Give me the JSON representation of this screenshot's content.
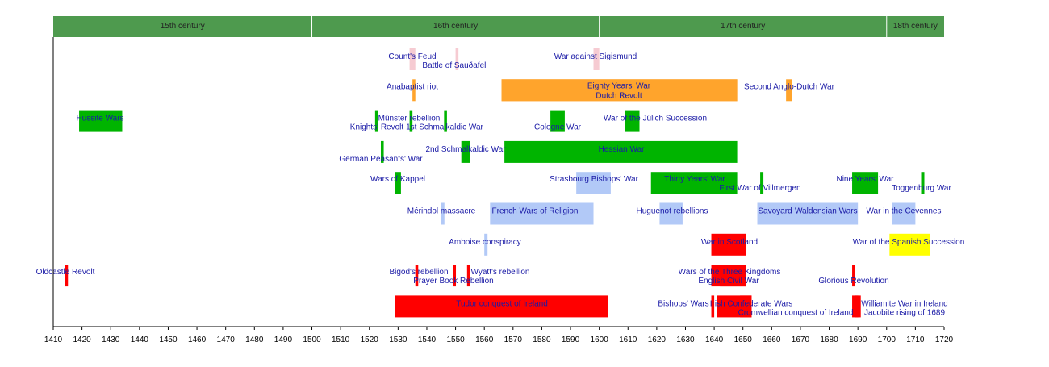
{
  "chart_data": {
    "type": "timeline",
    "xlim": [
      1410,
      1720
    ],
    "x_ticks": [
      1410,
      1420,
      1430,
      1440,
      1450,
      1460,
      1470,
      1480,
      1490,
      1500,
      1510,
      1520,
      1530,
      1540,
      1550,
      1560,
      1570,
      1580,
      1590,
      1600,
      1610,
      1620,
      1630,
      1640,
      1650,
      1660,
      1670,
      1680,
      1690,
      1700,
      1710,
      1720
    ],
    "grid": false,
    "centuries": [
      {
        "label": "15th century",
        "start": 1410,
        "end": 1500
      },
      {
        "label": "16th century",
        "start": 1500,
        "end": 1600
      },
      {
        "label": "17th century",
        "start": 1600,
        "end": 1700
      },
      {
        "label": "18th century",
        "start": 1700,
        "end": 1720
      }
    ],
    "colors": {
      "header": "#4e9a4e",
      "pink": "#f6cbd2",
      "orange": "#ffa42c",
      "green": "#00b400",
      "lightblue": "#b2c9f7",
      "red": "#ff0000",
      "yellow": "#ffff00",
      "label": "#1a1aa6"
    },
    "events": [
      {
        "label": "Count's Feud",
        "row": 1,
        "start": 1534,
        "end": 1536,
        "color": "pink"
      },
      {
        "label": "Battle of Sauðafell",
        "row": 1,
        "start": 1550,
        "end": 1551,
        "color": "pink"
      },
      {
        "label": "War against Sigismund",
        "row": 1,
        "start": 1598,
        "end": 1600,
        "color": "pink"
      },
      {
        "label": "Anabaptist riot",
        "row": 2,
        "start": 1535,
        "end": 1536,
        "color": "orange"
      },
      {
        "label": "Eighty Years' War",
        "row": 2,
        "start": 1566,
        "end": 1648,
        "color": "orange"
      },
      {
        "label": "Dutch Revolt",
        "row": 2,
        "start": 1566,
        "end": 1648,
        "color": "orange"
      },
      {
        "label": "Second Anglo-Dutch War",
        "row": 2,
        "start": 1665,
        "end": 1667,
        "color": "orange"
      },
      {
        "label": "Hussite Wars",
        "row": 3,
        "start": 1419,
        "end": 1434,
        "color": "green"
      },
      {
        "label": "Knights' Revolt",
        "row": 3,
        "start": 1522,
        "end": 1523,
        "color": "green"
      },
      {
        "label": "Münster rebellion",
        "row": 3,
        "start": 1534,
        "end": 1535,
        "color": "green"
      },
      {
        "label": "1st Schmalkaldic War",
        "row": 3,
        "start": 1546,
        "end": 1547,
        "color": "green"
      },
      {
        "label": "Cologne War",
        "row": 3,
        "start": 1583,
        "end": 1588,
        "color": "green"
      },
      {
        "label": "War of the Jülich Succession",
        "row": 3,
        "start": 1609,
        "end": 1614,
        "color": "green"
      },
      {
        "label": "German Peasants' War",
        "row": 4,
        "start": 1524,
        "end": 1525,
        "color": "green"
      },
      {
        "label": "2nd Schmalkaldic War",
        "row": 4,
        "start": 1552,
        "end": 1555,
        "color": "green"
      },
      {
        "label": "Hessian War",
        "row": 4,
        "start": 1567,
        "end": 1648,
        "color": "green"
      },
      {
        "label": "Wars of Kappel",
        "row": 5,
        "start": 1529,
        "end": 1531,
        "color": "green"
      },
      {
        "label": "Strasbourg Bishops' War",
        "row": 5,
        "start": 1592,
        "end": 1604,
        "color": "lightblue"
      },
      {
        "label": "Thirty Years' War",
        "row": 5,
        "start": 1618,
        "end": 1648,
        "color": "green"
      },
      {
        "label": "First War of Villmergen",
        "row": 5,
        "start": 1656,
        "end": 1656,
        "color": "green"
      },
      {
        "label": "Nine Years' War",
        "row": 5,
        "start": 1688,
        "end": 1697,
        "color": "green"
      },
      {
        "label": "Toggenburg War",
        "row": 5,
        "start": 1712,
        "end": 1712,
        "color": "green"
      },
      {
        "label": "Mérindol massacre",
        "row": 6,
        "start": 1545,
        "end": 1545,
        "color": "lightblue"
      },
      {
        "label": "French Wars of Religion",
        "row": 6,
        "start": 1562,
        "end": 1598,
        "color": "lightblue"
      },
      {
        "label": "Huguenot rebellions",
        "row": 6,
        "start": 1621,
        "end": 1629,
        "color": "lightblue"
      },
      {
        "label": "Savoyard-Waldensian Wars",
        "row": 6,
        "start": 1655,
        "end": 1690,
        "color": "lightblue"
      },
      {
        "label": "War in the Cevennes",
        "row": 6,
        "start": 1702,
        "end": 1710,
        "color": "lightblue"
      },
      {
        "label": "Amboise conspiracy",
        "row": 7,
        "start": 1560,
        "end": 1560,
        "color": "lightblue"
      },
      {
        "label": "War in Scotland",
        "row": 7,
        "start": 1639,
        "end": 1651,
        "color": "red"
      },
      {
        "label": "War of the Spanish Succession",
        "row": 7,
        "start": 1701,
        "end": 1715,
        "color": "yellow"
      },
      {
        "label": "Oldcastle Revolt",
        "row": 8,
        "start": 1414,
        "end": 1414,
        "color": "red"
      },
      {
        "label": "Bigod's rebellion",
        "row": 8,
        "start": 1536,
        "end": 1537,
        "color": "red"
      },
      {
        "label": "Prayer Book Rebellion",
        "row": 8,
        "start": 1549,
        "end": 1549,
        "color": "red"
      },
      {
        "label": "Wyatt's rebellion",
        "row": 8,
        "start": 1554,
        "end": 1554,
        "color": "red"
      },
      {
        "label": "Wars of the Three Kingdoms",
        "row": 8,
        "start": 1639,
        "end": 1651,
        "color": "red"
      },
      {
        "label": "English Civil War",
        "row": 8,
        "start": 1642,
        "end": 1651,
        "color": "red"
      },
      {
        "label": "Glorious Revolution",
        "row": 8,
        "start": 1688,
        "end": 1689,
        "color": "red"
      },
      {
        "label": "Tudor conquest of Ireland",
        "row": 9,
        "start": 1529,
        "end": 1603,
        "color": "red"
      },
      {
        "label": "Bishops' Wars",
        "row": 9,
        "start": 1639,
        "end": 1640,
        "color": "red"
      },
      {
        "label": "Irish Confederate Wars",
        "row": 9,
        "start": 1641,
        "end": 1653,
        "color": "red"
      },
      {
        "label": "Cromwellian conquest of Ireland",
        "row": 9,
        "start": 1649,
        "end": 1653,
        "color": "red"
      },
      {
        "label": "Williamite War in Ireland",
        "row": 9,
        "start": 1688,
        "end": 1691,
        "color": "red"
      },
      {
        "label": "Jacobite rising of 1689",
        "row": 9,
        "start": 1689,
        "end": 1689,
        "color": "red"
      }
    ]
  }
}
